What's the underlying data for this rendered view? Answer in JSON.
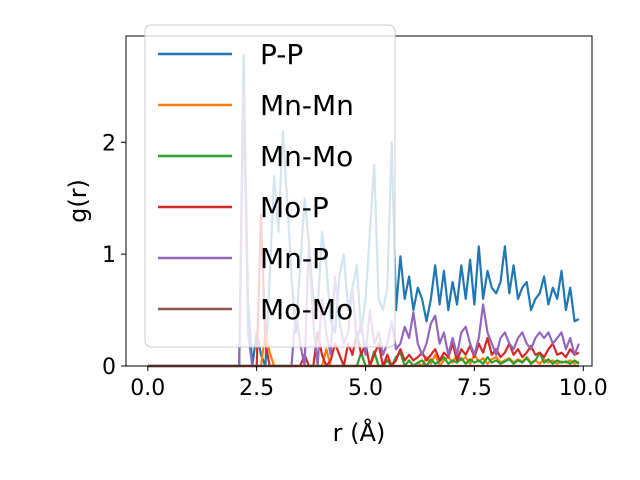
{
  "chart_data": {
    "type": "line",
    "xlabel": "r (Å)",
    "ylabel": "g(r)",
    "xlim": [
      -0.5,
      10.2
    ],
    "ylim": [
      0,
      2.95
    ],
    "xticks": [
      0.0,
      2.5,
      5.0,
      7.5,
      10.0
    ],
    "xtick_labels": [
      "0.0",
      "2.5",
      "5.0",
      "7.5",
      "10.0"
    ],
    "yticks": [
      0,
      1,
      2
    ],
    "ytick_labels": [
      "0",
      "1",
      "2"
    ],
    "grid": false,
    "legend_placement": "upper-left",
    "series": [
      {
        "name": "P-P",
        "color": "#1f77b4",
        "x": [
          0.0,
          2.0,
          2.1,
          2.2,
          2.3,
          2.4,
          2.5,
          2.6,
          2.7,
          2.8,
          2.9,
          3.0,
          3.1,
          3.2,
          3.3,
          3.4,
          3.5,
          3.6,
          3.7,
          3.8,
          3.9,
          4.0,
          4.1,
          4.2,
          4.3,
          4.4,
          4.5,
          4.6,
          4.7,
          4.8,
          4.9,
          5.0,
          5.1,
          5.2,
          5.3,
          5.4,
          5.5,
          5.6,
          5.7,
          5.8,
          5.9,
          6.0,
          6.1,
          6.2,
          6.3,
          6.4,
          6.5,
          6.6,
          6.7,
          6.8,
          6.9,
          7.0,
          7.1,
          7.2,
          7.3,
          7.4,
          7.5,
          7.6,
          7.7,
          7.8,
          7.9,
          8.0,
          8.1,
          8.2,
          8.3,
          8.4,
          8.5,
          8.6,
          8.7,
          8.8,
          8.9,
          9.0,
          9.1,
          9.2,
          9.3,
          9.4,
          9.5,
          9.6,
          9.7,
          9.8,
          9.9
        ],
        "y": [
          0.0,
          0.0,
          0.0,
          2.78,
          0.6,
          0.0,
          0.3,
          0.1,
          0.0,
          0.8,
          1.7,
          1.2,
          2.1,
          1.5,
          0.8,
          0.3,
          0.9,
          1.5,
          1.1,
          0.6,
          0.5,
          1.2,
          0.9,
          0.4,
          0.3,
          0.8,
          1.0,
          0.5,
          0.7,
          0.9,
          0.3,
          0.6,
          1.2,
          1.8,
          0.6,
          0.5,
          0.7,
          2.0,
          0.5,
          0.98,
          0.6,
          0.8,
          0.5,
          0.7,
          0.6,
          0.4,
          0.6,
          0.9,
          0.55,
          0.85,
          0.5,
          0.75,
          0.55,
          0.9,
          0.6,
          0.95,
          0.55,
          1.07,
          0.6,
          0.85,
          0.7,
          0.65,
          0.75,
          1.07,
          0.65,
          0.9,
          0.6,
          0.7,
          0.75,
          0.5,
          0.6,
          0.65,
          0.8,
          0.55,
          0.7,
          0.6,
          0.85,
          0.5,
          0.7,
          0.4,
          0.42
        ]
      },
      {
        "name": "Mn-Mn",
        "color": "#ff7f0e",
        "x": [
          0.0,
          2.5,
          2.6,
          2.7,
          2.8,
          2.9,
          3.0,
          3.1,
          4.0,
          4.1,
          4.2,
          4.3,
          4.4,
          5.9,
          6.0,
          6.1,
          6.2,
          6.3,
          6.4,
          6.5,
          6.6,
          6.7,
          6.8,
          6.9,
          7.0,
          7.1,
          7.2,
          7.3,
          7.4,
          7.5,
          7.6,
          7.7,
          7.8,
          7.9,
          8.0,
          8.1,
          8.2,
          8.3,
          8.4,
          8.5,
          8.6,
          8.7,
          8.8,
          8.9,
          9.0,
          9.1,
          9.2,
          9.3,
          9.4,
          9.5,
          9.6,
          9.7,
          9.8,
          9.9
        ],
        "y": [
          0.0,
          0.0,
          0.0,
          0.3,
          0.12,
          0.0,
          0.0,
          0.0,
          0.0,
          0.15,
          0.0,
          0.0,
          0.0,
          0.0,
          0.05,
          0.0,
          0.03,
          0.0,
          0.08,
          0.02,
          0.1,
          0.0,
          0.05,
          0.08,
          0.03,
          0.1,
          0.05,
          0.08,
          0.02,
          0.1,
          0.04,
          0.07,
          0.02,
          0.06,
          0.08,
          0.03,
          0.05,
          0.07,
          0.03,
          0.06,
          0.04,
          0.08,
          0.03,
          0.05,
          0.02,
          0.06,
          0.03,
          0.05,
          0.02,
          0.04,
          0.03,
          0.05,
          0.02,
          0.04
        ]
      },
      {
        "name": "Mn-Mo",
        "color": "#2ca02c",
        "x": [
          0.0,
          4.7,
          4.8,
          4.9,
          5.0,
          5.1,
          5.2,
          5.3,
          5.4,
          5.5,
          5.6,
          5.7,
          5.8,
          5.9,
          6.0,
          6.1,
          6.2,
          6.3,
          6.4,
          6.5,
          6.6,
          6.7,
          6.8,
          6.9,
          7.0,
          7.1,
          7.2,
          7.3,
          7.4,
          7.5,
          7.6,
          7.7,
          7.8,
          7.9,
          8.0,
          8.1,
          8.2,
          8.3,
          8.4,
          8.5,
          8.6,
          8.7,
          8.8,
          8.9,
          9.0,
          9.1,
          9.2,
          9.3,
          9.4,
          9.5,
          9.6,
          9.7,
          9.8,
          9.9
        ],
        "y": [
          0.0,
          0.0,
          0.0,
          0.12,
          0.0,
          0.0,
          0.13,
          0.0,
          0.0,
          0.05,
          0.0,
          0.08,
          0.12,
          0.0,
          0.05,
          0.0,
          0.03,
          0.05,
          0.0,
          0.06,
          0.02,
          0.04,
          0.08,
          0.02,
          0.05,
          0.03,
          0.07,
          0.02,
          0.06,
          0.03,
          0.05,
          0.02,
          0.08,
          0.03,
          0.05,
          0.02,
          0.04,
          0.06,
          0.02,
          0.05,
          0.03,
          0.07,
          0.02,
          0.05,
          0.12,
          0.03,
          0.06,
          0.02,
          0.05,
          0.03,
          0.04,
          0.02,
          0.05,
          0.02
        ]
      },
      {
        "name": "Mo-P",
        "color": "#d62728",
        "x": [
          0.0,
          2.4,
          2.5,
          2.6,
          2.7,
          2.8,
          2.9,
          3.0,
          3.5,
          3.6,
          3.7,
          3.8,
          3.9,
          4.0,
          4.1,
          4.2,
          4.3,
          4.4,
          4.5,
          4.6,
          4.7,
          4.8,
          4.9,
          5.0,
          5.1,
          5.2,
          5.3,
          5.4,
          5.5,
          5.6,
          5.7,
          5.8,
          5.9,
          6.0,
          6.1,
          6.2,
          6.3,
          6.4,
          6.5,
          6.6,
          6.7,
          6.8,
          6.9,
          7.0,
          7.1,
          7.2,
          7.3,
          7.4,
          7.5,
          7.6,
          7.7,
          7.8,
          7.9,
          8.0,
          8.1,
          8.2,
          8.3,
          8.4,
          8.5,
          8.6,
          8.7,
          8.8,
          8.9,
          9.0,
          9.1,
          9.2,
          9.3,
          9.4,
          9.5,
          9.6,
          9.7,
          9.8,
          9.9
        ],
        "y": [
          0.0,
          0.0,
          0.0,
          1.35,
          0.2,
          0.0,
          0.0,
          0.0,
          0.0,
          0.1,
          0.0,
          0.0,
          0.3,
          0.1,
          0.0,
          0.05,
          0.2,
          0.1,
          0.0,
          0.2,
          0.1,
          0.3,
          0.1,
          0.2,
          0.0,
          0.1,
          0.2,
          0.0,
          0.1,
          0.0,
          0.05,
          0.15,
          0.05,
          0.1,
          0.05,
          0.08,
          0.12,
          0.05,
          0.1,
          0.15,
          0.05,
          0.12,
          0.08,
          0.2,
          0.05,
          0.15,
          0.1,
          0.18,
          0.08,
          0.2,
          0.12,
          0.25,
          0.1,
          0.15,
          0.08,
          0.12,
          0.2,
          0.1,
          0.15,
          0.08,
          0.12,
          0.18,
          0.1,
          0.12,
          0.08,
          0.15,
          0.2,
          0.1,
          0.12,
          0.08,
          0.15,
          0.1,
          0.12
        ]
      },
      {
        "name": "Mn-P",
        "color": "#9467bd",
        "x": [
          0.0,
          2.1,
          2.2,
          2.3,
          2.4,
          3.3,
          3.4,
          3.5,
          3.6,
          3.7,
          3.8,
          3.9,
          4.0,
          4.1,
          4.2,
          4.3,
          4.4,
          4.5,
          4.6,
          4.7,
          4.8,
          4.9,
          5.0,
          5.1,
          5.2,
          5.3,
          5.4,
          5.5,
          5.6,
          5.7,
          5.8,
          5.9,
          6.0,
          6.1,
          6.2,
          6.3,
          6.4,
          6.5,
          6.6,
          6.7,
          6.8,
          6.9,
          7.0,
          7.1,
          7.2,
          7.3,
          7.4,
          7.5,
          7.6,
          7.7,
          7.8,
          7.9,
          8.0,
          8.1,
          8.2,
          8.3,
          8.4,
          8.5,
          8.6,
          8.7,
          8.8,
          8.9,
          9.0,
          9.1,
          9.2,
          9.3,
          9.4,
          9.5,
          9.6,
          9.7,
          9.8,
          9.9
        ],
        "y": [
          0.0,
          0.0,
          2.5,
          0.3,
          0.0,
          0.0,
          0.5,
          0.2,
          0.0,
          1.1,
          0.4,
          0.0,
          0.6,
          0.3,
          0.1,
          0.8,
          0.4,
          0.2,
          0.3,
          0.7,
          0.2,
          0.4,
          0.1,
          0.5,
          0.2,
          0.3,
          0.1,
          0.2,
          0.4,
          0.15,
          0.2,
          0.35,
          0.25,
          0.48,
          0.2,
          0.1,
          0.2,
          0.38,
          0.45,
          0.2,
          0.3,
          0.1,
          0.25,
          0.1,
          0.3,
          0.35,
          0.2,
          0.1,
          0.25,
          0.55,
          0.3,
          0.2,
          0.1,
          0.25,
          0.3,
          0.2,
          0.15,
          0.25,
          0.3,
          0.2,
          0.15,
          0.25,
          0.3,
          0.25,
          0.3,
          0.2,
          0.25,
          0.3,
          0.15,
          0.25,
          0.1,
          0.2
        ]
      },
      {
        "name": "Mo-Mo",
        "color": "#8c564b",
        "x": [
          0.0,
          9.8,
          9.9
        ],
        "y": [
          0.0,
          0.0,
          0.0
        ]
      }
    ]
  }
}
